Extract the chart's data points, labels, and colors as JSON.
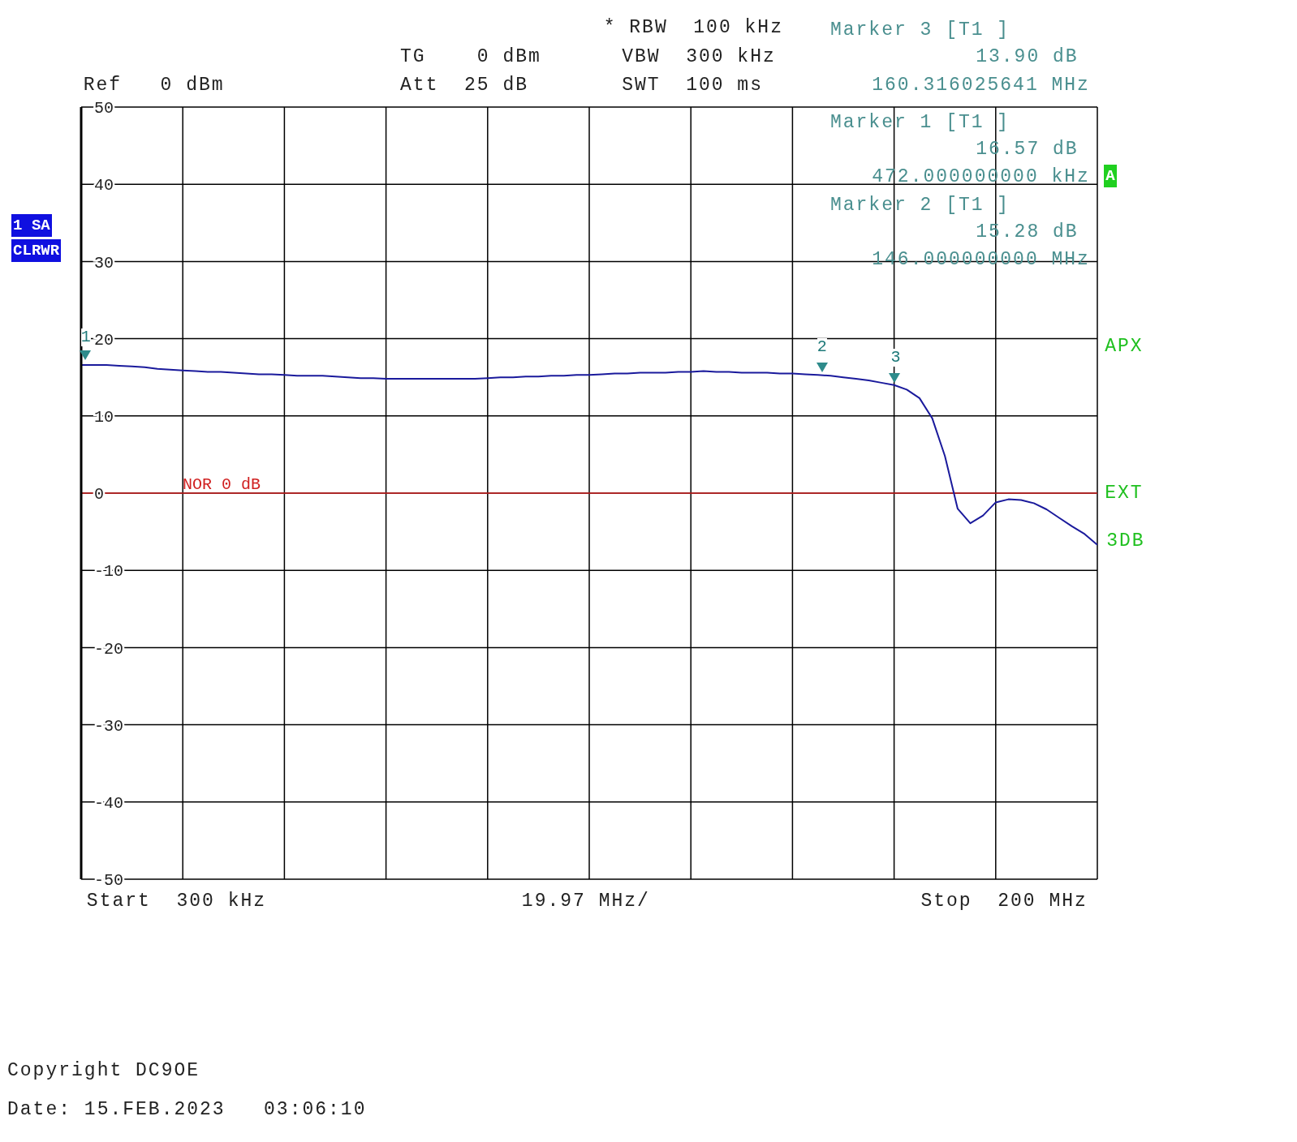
{
  "chart_data": {
    "type": "line",
    "categories": [
      null,
      null,
      null,
      null,
      null,
      null,
      null,
      null,
      null,
      null,
      null,
      null,
      null,
      null,
      null,
      null,
      null,
      null,
      null,
      null,
      null,
      null,
      null,
      null,
      null,
      null,
      null,
      null,
      null,
      null,
      null,
      null,
      null,
      null,
      null,
      null,
      null,
      null,
      null,
      null,
      null,
      null,
      null,
      null,
      null,
      null,
      null,
      null,
      null,
      null,
      null,
      null,
      null,
      null,
      null,
      null,
      null,
      null,
      null,
      null,
      null,
      null,
      null,
      null,
      null,
      null,
      null,
      null,
      null,
      null,
      null,
      null,
      null,
      null,
      null,
      null,
      null,
      null,
      null,
      null,
      null
    ],
    "ylim": [
      -50,
      50
    ],
    "yticks": [
      -50,
      -40,
      -30,
      -20,
      -10,
      0,
      10,
      20,
      30,
      40,
      50
    ],
    "grid": true,
    "tick_labels": "y",
    "series": [
      {
        "type": "line",
        "color": "#1a1a9c",
        "marker": "none",
        "values": [
          16.6,
          16.6,
          16.6,
          16.5,
          16.4,
          16.3,
          16.1,
          16.0,
          15.9,
          15.8,
          15.7,
          15.7,
          15.6,
          15.5,
          15.4,
          15.4,
          15.3,
          15.2,
          15.2,
          15.2,
          15.1,
          15.0,
          14.9,
          14.9,
          14.8,
          14.8,
          14.8,
          14.8,
          14.8,
          14.8,
          14.8,
          14.8,
          14.9,
          15.0,
          15.0,
          15.1,
          15.1,
          15.2,
          15.2,
          15.3,
          15.3,
          15.4,
          15.5,
          15.5,
          15.6,
          15.6,
          15.6,
          15.7,
          15.7,
          15.8,
          15.7,
          15.7,
          15.6,
          15.6,
          15.6,
          15.5,
          15.5,
          15.4,
          15.3,
          15.2,
          15.0,
          14.8,
          14.6,
          14.3,
          14.0,
          13.4,
          12.3,
          9.7,
          4.8,
          -2.0,
          -3.9,
          -2.9,
          -1.2,
          -0.8,
          -0.9,
          -1.3,
          -2.1,
          -3.2,
          -4.3,
          -5.3,
          -6.7
        ]
      }
    ],
    "ref_lines": [
      {
        "axis": "y",
        "value": 0,
        "label": "NOR 0 dB",
        "color": "#d02020"
      }
    ],
    "annotations": [
      "Ref   0 dBm",
      "TG    0 dBm",
      "Att  25 dB",
      "* RBW  100 kHz",
      "VBW  300 kHz",
      "SWT  100 ms",
      "Marker 3 [T1 ]",
      "13.90 dB",
      "160.316025641 MHz",
      "Marker 1 [T1 ]",
      "16.57 dB",
      "472.000000000 kHz",
      "Marker 2 [T1 ]",
      "15.28 dB",
      "146.000000000 MHz",
      "1 SA",
      "CLRWR",
      "A",
      "APX",
      "EXT",
      "3DB",
      "Start  300 kHz",
      "19.97 MHz/",
      "Stop  200 MHz",
      "Copyright DC9OE",
      "Date: 15.FEB.2023   03:06:10",
      "1",
      "2",
      "3"
    ]
  }
}
